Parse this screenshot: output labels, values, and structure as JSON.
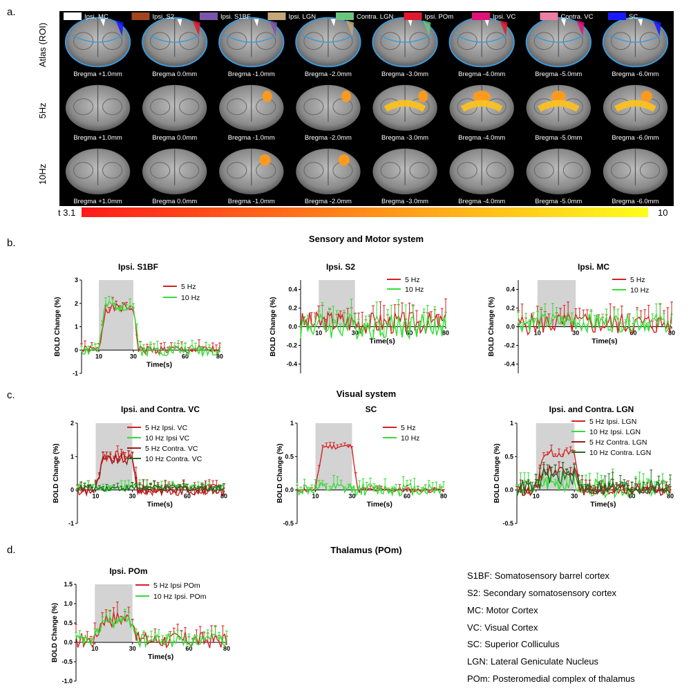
{
  "panel_letters": [
    "a.",
    "b.",
    "c.",
    "d."
  ],
  "brain": {
    "row_labels": [
      "Atlas (ROI)",
      "5Hz",
      "10Hz"
    ],
    "bregma_labels": [
      "Bregma +1.0mm",
      "Bregma 0.0mm",
      "Bregma -1.0mm",
      "Bregma -2.0mm",
      "Bregma -3.0mm",
      "Bregma -4.0mm",
      "Bregma -5.0mm",
      "Bregma -6.0mm"
    ],
    "roi_legend": [
      {
        "label": "Ipsi. MC",
        "color": "#ffffff"
      },
      {
        "label": "Ipsi. S2",
        "color": "#a0461f"
      },
      {
        "label": "Ipsi. S1BF",
        "color": "#7b55a8"
      },
      {
        "label": "Ipsi. LGN",
        "color": "#c4a878"
      },
      {
        "label": "Contra. LGN",
        "color": "#6cc47e"
      },
      {
        "label": "Ipsi. POm",
        "color": "#e0192e"
      },
      {
        "label": "Ipsi. VC",
        "color": "#e0127a"
      },
      {
        "label": "Contra. VC",
        "color": "#ee7fa4"
      },
      {
        "label": "SC",
        "color": "#1a1aff"
      }
    ],
    "colorbar": {
      "min_label": "t 3.1",
      "max_label": "10",
      "start_color": "#ff1a1a",
      "end_color": "#ffff1a"
    }
  },
  "section_titles": {
    "b": "Sensory and Motor system",
    "c": "Visual system",
    "d": "Thalamus (POm)"
  },
  "abbreviations": [
    "S1BF: Somatosensory barrel cortex",
    "S2: Secondary somatosensory cortex",
    "MC: Motor Cortex",
    "VC: Visual Cortex",
    "SC: Superior Colliculus",
    "LGN: Lateral Geniculate Nucleus",
    "POm: Posteromedial complex of thalamus"
  ],
  "colors": {
    "red": "#d42020",
    "green": "#33dd33",
    "dark_red": "#a01818",
    "dark_green": "#1f6b1f",
    "stim": "#d3d3d3"
  },
  "chart_data": [
    {
      "type": "line",
      "title": "Ipsi. S1BF",
      "xlabel": "Time(s)",
      "ylabel": "BOLD Change (%)",
      "xlim": [
        0,
        80
      ],
      "ylim": [
        -1,
        3
      ],
      "xticks": [
        "10",
        "30",
        "60",
        "80"
      ],
      "yticks": [
        "-1",
        "0",
        "1",
        "2",
        "3"
      ],
      "stimulus": [
        10,
        30
      ],
      "legend": "top-right",
      "series": [
        {
          "name": "5 Hz",
          "color": "red",
          "peak": 1.8,
          "noise": 0.2,
          "level": 1.0,
          "seed": 1
        },
        {
          "name": "10 Hz",
          "color": "green",
          "peak": 1.9,
          "noise": 0.25,
          "level": 1.0,
          "seed": 2
        }
      ]
    },
    {
      "type": "line",
      "title": "Ipsi. S2",
      "xlabel": "Time(s)",
      "ylabel": "BOLD Change (%)",
      "xlim": [
        0,
        80
      ],
      "ylim": [
        -0.5,
        0.5
      ],
      "xticks": [
        "10",
        "30",
        "60",
        "80"
      ],
      "yticks": [
        "-0.4",
        "-0.2",
        "0.0",
        "0.2",
        "0.4"
      ],
      "stimulus": [
        10,
        30
      ],
      "legend": "top-right",
      "series": [
        {
          "name": "5 Hz",
          "color": "red",
          "peak": 0.12,
          "noise": 0.12,
          "level": 0.12,
          "seed": 3
        },
        {
          "name": "10 Hz",
          "color": "green",
          "peak": 0.02,
          "noise": 0.14,
          "level": 0.0,
          "seed": 4
        }
      ]
    },
    {
      "type": "line",
      "title": "Ipsi. MC",
      "xlabel": "Time(s)",
      "ylabel": "BOLD Change (%)",
      "xlim": [
        0,
        80
      ],
      "ylim": [
        -0.5,
        0.5
      ],
      "xticks": [
        "10",
        "30",
        "60",
        "80"
      ],
      "yticks": [
        "-0.4",
        "-0.2",
        "0.0",
        "0.2",
        "0.4"
      ],
      "stimulus": [
        10,
        30
      ],
      "legend": "top-right",
      "series": [
        {
          "name": "5 Hz",
          "color": "red",
          "peak": 0.08,
          "noise": 0.12,
          "level": 0.05,
          "seed": 5
        },
        {
          "name": "10 Hz",
          "color": "green",
          "peak": 0.12,
          "noise": 0.1,
          "level": 0.1,
          "seed": 6
        }
      ]
    },
    {
      "type": "line",
      "title": "Ipsi. and Contra. VC",
      "xlabel": "Time(s)",
      "ylabel": "BOLD Change (%)",
      "xlim": [
        0,
        80
      ],
      "ylim": [
        -1,
        2
      ],
      "xticks": [
        "10",
        "30",
        "60",
        "80"
      ],
      "yticks": [
        "-1",
        "0",
        "1",
        "2"
      ],
      "stimulus": [
        10,
        30
      ],
      "legend": "top-right",
      "series": [
        {
          "name": "5 Hz Ipsi. VC",
          "color": "red",
          "peak": 1.0,
          "noise": 0.18,
          "level": 1.0,
          "seed": 7
        },
        {
          "name": "10 Hz Ipsi VC",
          "color": "green",
          "peak": 0.2,
          "noise": 0.12,
          "level": 0.0,
          "seed": 8
        },
        {
          "name": "5 Hz Contra. VC",
          "color": "dark_red",
          "peak": 0.9,
          "noise": 0.15,
          "level": 1.0,
          "seed": 9
        },
        {
          "name": "10 Hz Contra. VC",
          "color": "dark_green",
          "peak": 0.15,
          "noise": 0.1,
          "level": 0.0,
          "seed": 10
        }
      ]
    },
    {
      "type": "line",
      "title": "SC",
      "xlabel": "Time(s)",
      "ylabel": "BOLD Change (%)",
      "xlim": [
        0,
        80
      ],
      "ylim": [
        -0.5,
        1
      ],
      "xticks": [
        "10",
        "30",
        "60",
        "80"
      ],
      "yticks": [
        "-0.5",
        "0.0",
        "0.5",
        "1"
      ],
      "stimulus": [
        10,
        30
      ],
      "legend": "top-right",
      "series": [
        {
          "name": "5 Hz",
          "color": "red",
          "peak": 0.65,
          "noise": 0.04,
          "level": 1.0,
          "seed": 11
        },
        {
          "name": "10 Hz",
          "color": "green",
          "peak": 0.03,
          "noise": 0.1,
          "level": 0.0,
          "seed": 12
        }
      ]
    },
    {
      "type": "line",
      "title": "Ipsi. and Contra. LGN",
      "xlabel": "Time(s)",
      "ylabel": "BOLD Change (%)",
      "xlim": [
        0,
        80
      ],
      "ylim": [
        -0.5,
        1
      ],
      "xticks": [
        "10",
        "30",
        "60",
        "80"
      ],
      "yticks": [
        "-0.5",
        "0.0",
        "0.5",
        "1"
      ],
      "stimulus": [
        10,
        30
      ],
      "legend": "top-right",
      "series": [
        {
          "name": "5 Hz Ipsi.  LGN",
          "color": "red",
          "peak": 0.55,
          "noise": 0.06,
          "level": 1.0,
          "seed": 13
        },
        {
          "name": "10 Hz Ipsi. LGN",
          "color": "green",
          "peak": 0.15,
          "noise": 0.14,
          "level": 0.5,
          "seed": 14
        },
        {
          "name": "5 Hz Contra. LGN",
          "color": "dark_red",
          "peak": 0.3,
          "noise": 0.08,
          "level": 1.0,
          "seed": 15
        },
        {
          "name": "10 Hz Contra. LGN",
          "color": "dark_green",
          "peak": 0.25,
          "noise": 0.12,
          "level": 0.6,
          "seed": 16
        }
      ]
    },
    {
      "type": "line",
      "title": "Ipsi. POm",
      "xlabel": "Time(s)",
      "ylabel": "BOLD Change (%)",
      "xlim": [
        0,
        80
      ],
      "ylim": [
        -1,
        1.5
      ],
      "xticks": [
        "10",
        "30",
        "60",
        "80"
      ],
      "yticks": [
        "-1.0",
        "-0.5",
        "0.0",
        "0.5",
        "1.0",
        "1.5"
      ],
      "stimulus": [
        10,
        30
      ],
      "legend": "top-right",
      "series": [
        {
          "name": "5 Hz Ipsi POm",
          "color": "red",
          "peak": 0.7,
          "noise": 0.22,
          "level": 0.8,
          "seed": 17
        },
        {
          "name": "10 Hz Ipsi. POm",
          "color": "green",
          "peak": 0.6,
          "noise": 0.18,
          "level": 0.8,
          "seed": 18
        }
      ]
    }
  ]
}
